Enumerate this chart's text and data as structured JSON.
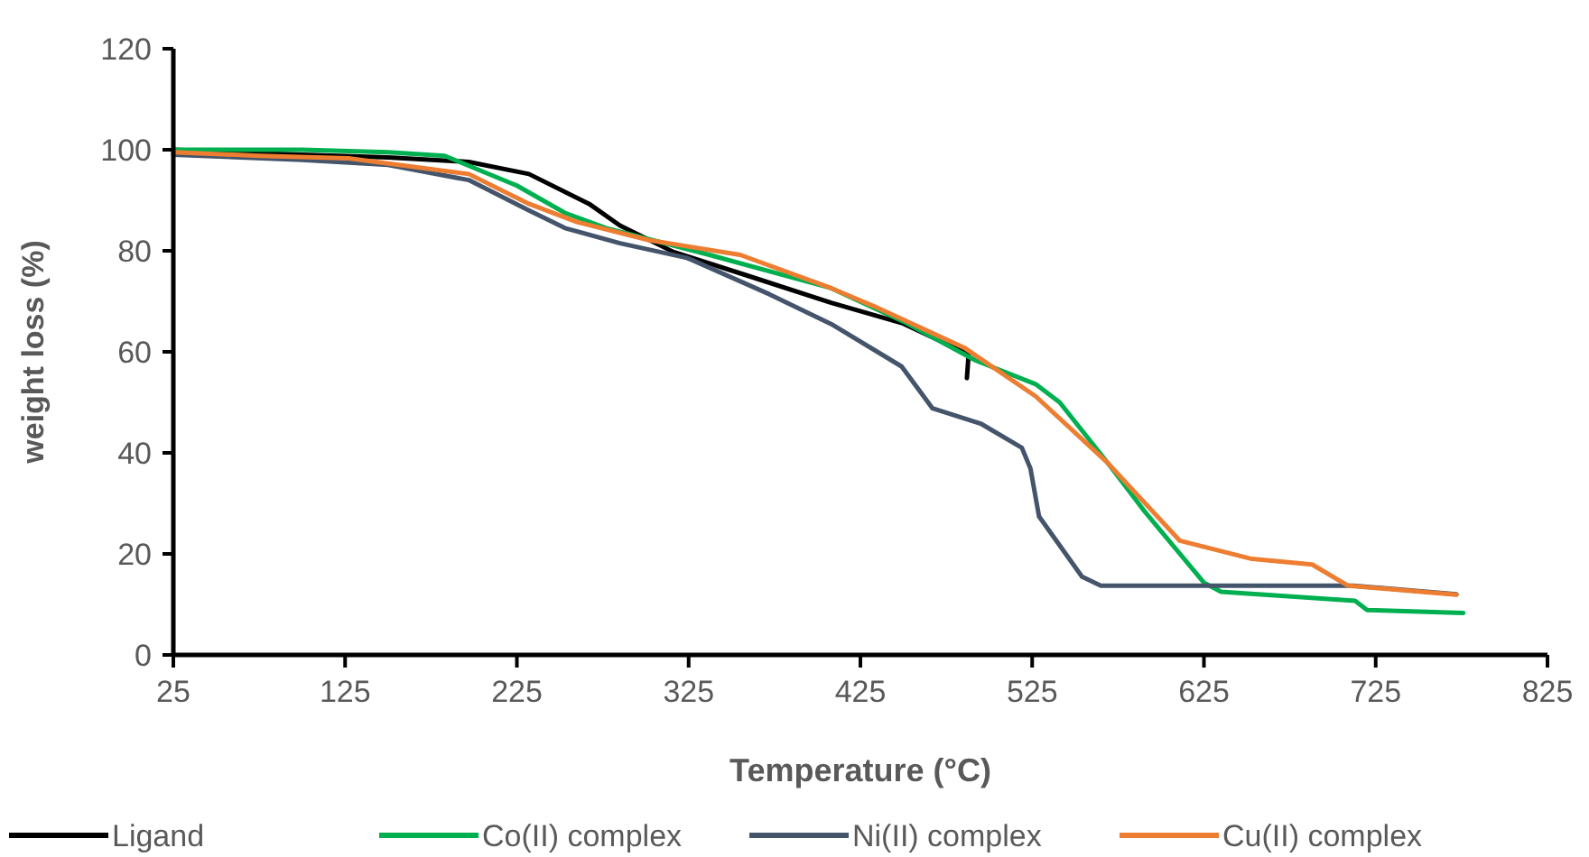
{
  "chart_data": {
    "type": "line",
    "xlabel": "Temperature (°C)",
    "ylabel": "weight loss (%)",
    "xlim": [
      25,
      825
    ],
    "xticks": [
      25,
      125,
      225,
      325,
      425,
      525,
      625,
      725,
      825
    ],
    "ylim": [
      0,
      120
    ],
    "yticks": [
      0,
      20,
      40,
      60,
      80,
      100,
      120
    ],
    "grid": false,
    "legend": "bottom",
    "marker": "none",
    "line_style": "solid",
    "series": [
      {
        "name": "Ligand",
        "color": "#000000",
        "x": [
          25,
          100,
          150,
          197,
          232,
          267,
          285,
          316,
          360,
          408,
          450,
          488,
          487
        ],
        "values": [
          100,
          99,
          98.5,
          97.6,
          95.2,
          89.3,
          85,
          79.8,
          75,
          69.7,
          65.6,
          59.5,
          54.8
        ]
      },
      {
        "name": "Co(II) complex",
        "color": "#00b050",
        "x": [
          25,
          100,
          150,
          183,
          225,
          253,
          277,
          337,
          408,
          450,
          492,
          527,
          541,
          569,
          590,
          625,
          635,
          713,
          720,
          776
        ],
        "values": [
          100,
          100,
          99.5,
          98.8,
          92.9,
          87.5,
          84.5,
          79.2,
          72.6,
          66,
          58.3,
          53.6,
          50,
          38,
          28.6,
          14.3,
          12.5,
          10.7,
          8.9,
          8.3
        ]
      },
      {
        "name": "Ni(II) complex",
        "color": "#44546a",
        "x": [
          25,
          100,
          150,
          197,
          232,
          253,
          285,
          324,
          372,
          408,
          449,
          467,
          495,
          519,
          524,
          529,
          554,
          565,
          712,
          772
        ],
        "values": [
          99,
          98,
          97,
          94,
          88,
          84.5,
          81.5,
          78.6,
          71.4,
          65.5,
          57.1,
          48.8,
          45.8,
          41,
          36.9,
          27.4,
          15.5,
          13.7,
          13.7,
          12
        ]
      },
      {
        "name": "Cu(II) complex",
        "color": "#ed7d31",
        "x": [
          25,
          75,
          127,
          197,
          232,
          260,
          302,
          355,
          408,
          433,
          486,
          527,
          569,
          611,
          653,
          688,
          709,
          772
        ],
        "values": [
          99.5,
          98.8,
          98.3,
          95.2,
          89.3,
          85.7,
          82.1,
          79.2,
          72.6,
          69,
          60.7,
          51.2,
          38,
          22.6,
          19,
          17.9,
          13.7,
          11.9
        ]
      }
    ]
  }
}
